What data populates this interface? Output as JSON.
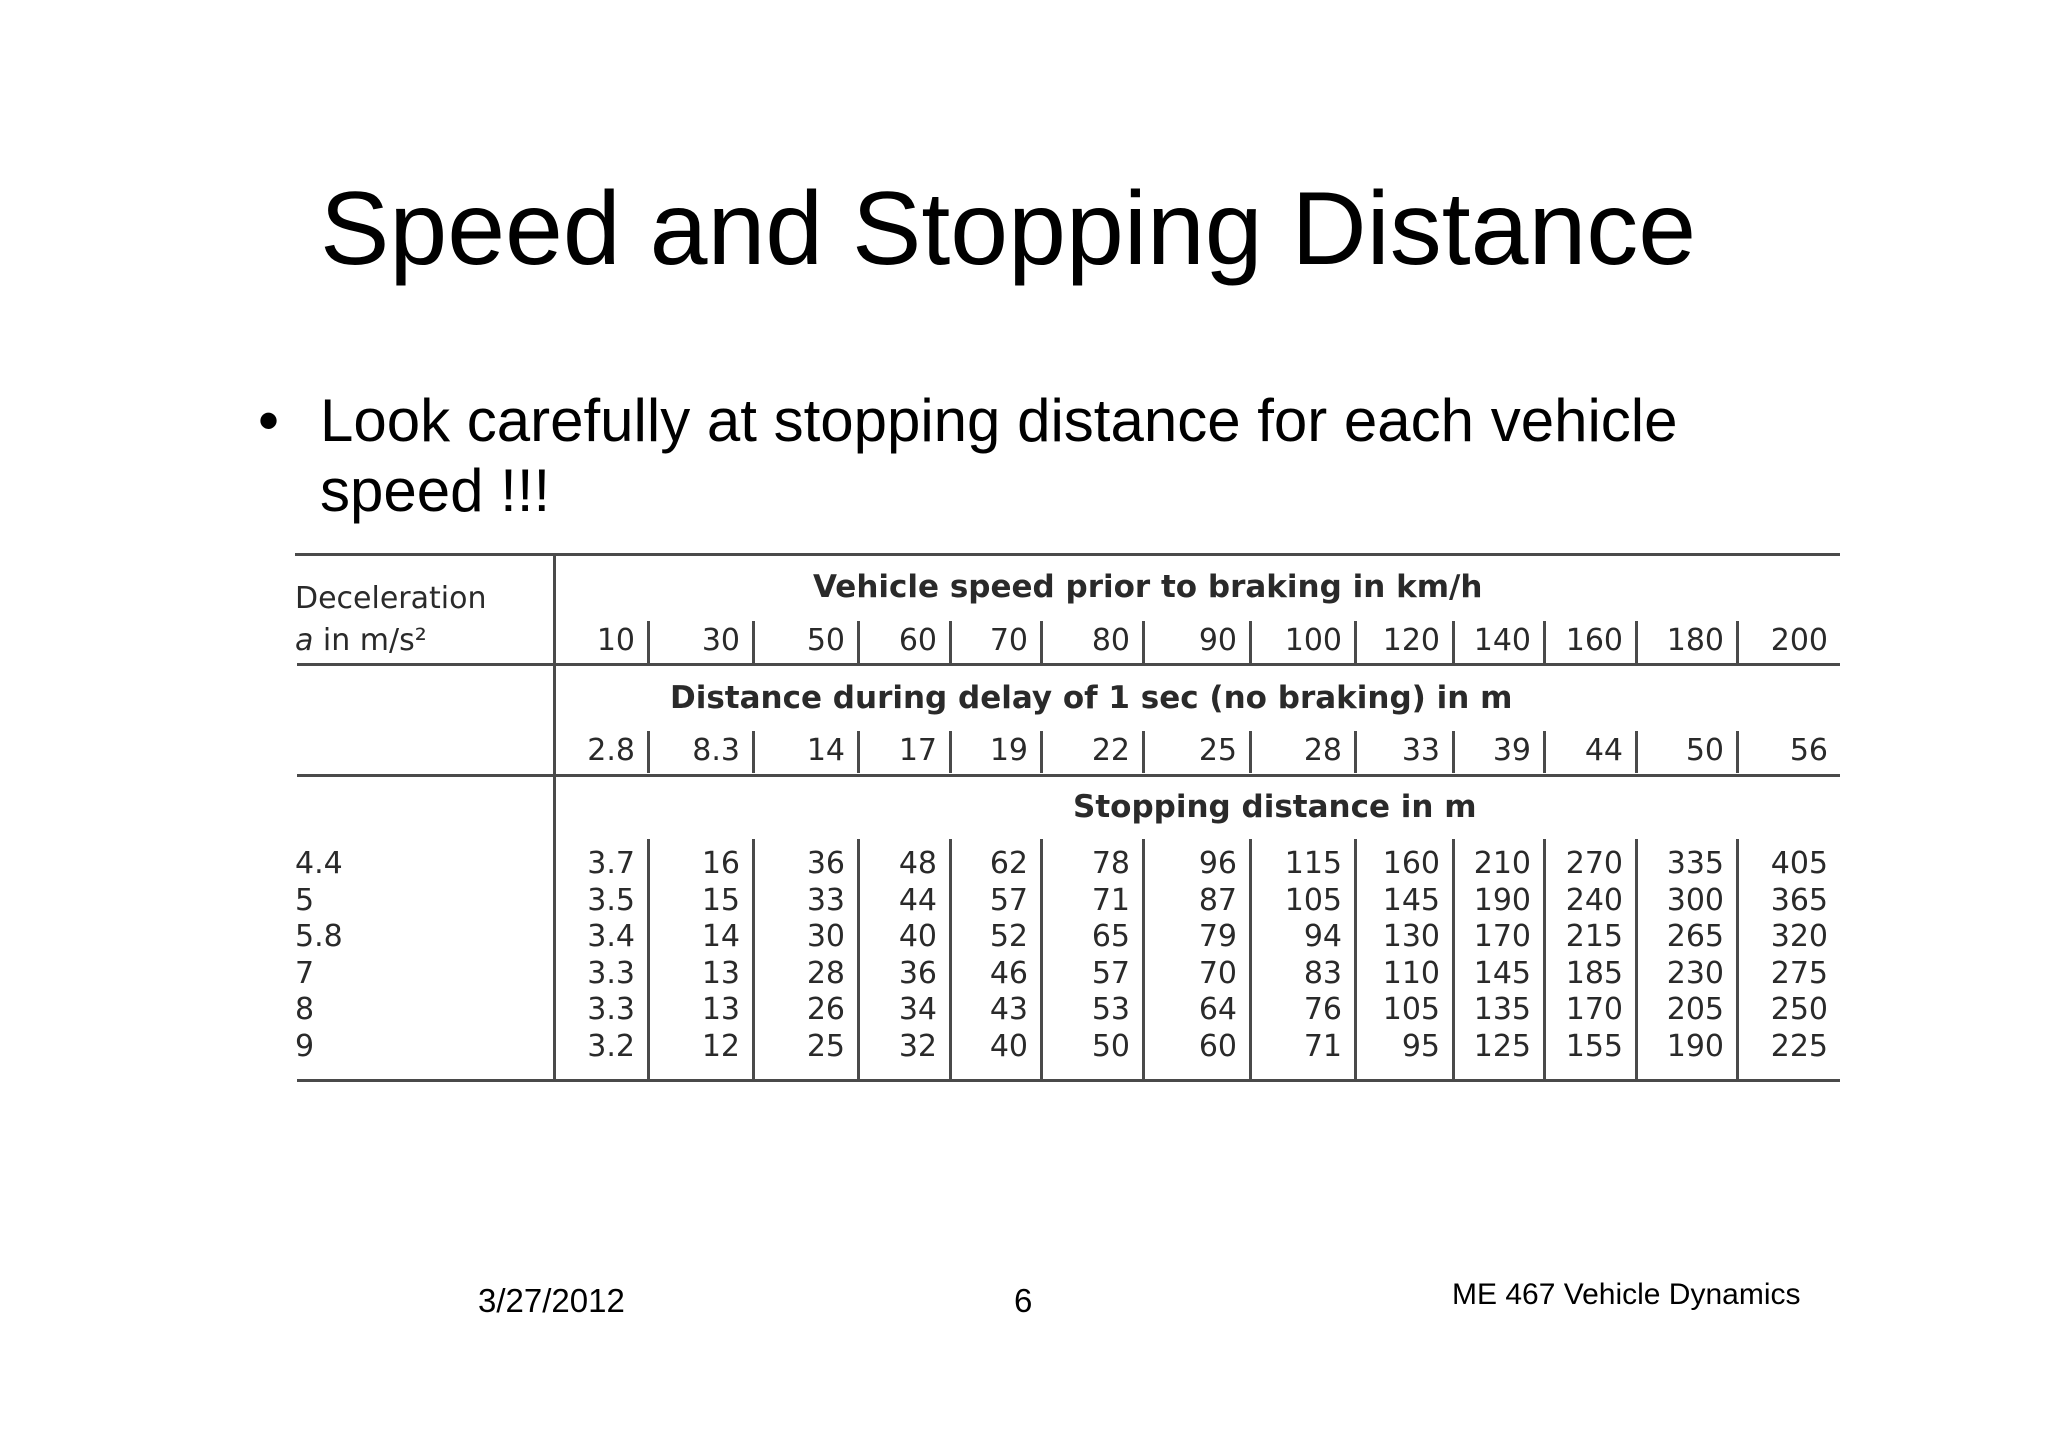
{
  "slide": {
    "title": "Speed and Stopping Distance",
    "bullet": "Look carefully at stopping distance for each vehicle speed !!!"
  },
  "table": {
    "row_header_line1": "Deceleration",
    "row_header_a": "a",
    "row_header_line2": " in m/s²",
    "speed_header": "Vehicle speed prior to braking in km/h",
    "speeds": [
      "10",
      "30",
      "50",
      "60",
      "70",
      "80",
      "90",
      "100",
      "120",
      "140",
      "160",
      "180",
      "200"
    ],
    "delay_header": "Distance during delay of 1 sec (no braking) in m",
    "delay_distances": [
      "2.8",
      "8.3",
      "14",
      "17",
      "19",
      "22",
      "25",
      "28",
      "33",
      "39",
      "44",
      "50",
      "56"
    ],
    "stopping_header": "Stopping distance in m",
    "rows": [
      {
        "decel": "4.4",
        "values": [
          "3.7",
          "16",
          "36",
          "48",
          "62",
          "78",
          "96",
          "115",
          "160",
          "210",
          "270",
          "335",
          "405"
        ]
      },
      {
        "decel": "5",
        "values": [
          "3.5",
          "15",
          "33",
          "44",
          "57",
          "71",
          "87",
          "105",
          "145",
          "190",
          "240",
          "300",
          "365"
        ]
      },
      {
        "decel": "5.8",
        "values": [
          "3.4",
          "14",
          "30",
          "40",
          "52",
          "65",
          "79",
          "94",
          "130",
          "170",
          "215",
          "265",
          "320"
        ]
      },
      {
        "decel": "7",
        "values": [
          "3.3",
          "13",
          "28",
          "36",
          "46",
          "57",
          "70",
          "83",
          "110",
          "145",
          "185",
          "230",
          "275"
        ]
      },
      {
        "decel": "8",
        "values": [
          "3.3",
          "13",
          "26",
          "34",
          "43",
          "53",
          "64",
          "76",
          "105",
          "135",
          "170",
          "205",
          "250"
        ]
      },
      {
        "decel": "9",
        "values": [
          "3.2",
          "12",
          "25",
          "32",
          "40",
          "50",
          "60",
          "71",
          "95",
          "125",
          "155",
          "190",
          "225"
        ]
      }
    ]
  },
  "footer": {
    "date": "3/27/2012",
    "page_number": "6",
    "course": "ME 467  Vehicle Dynamics"
  }
}
